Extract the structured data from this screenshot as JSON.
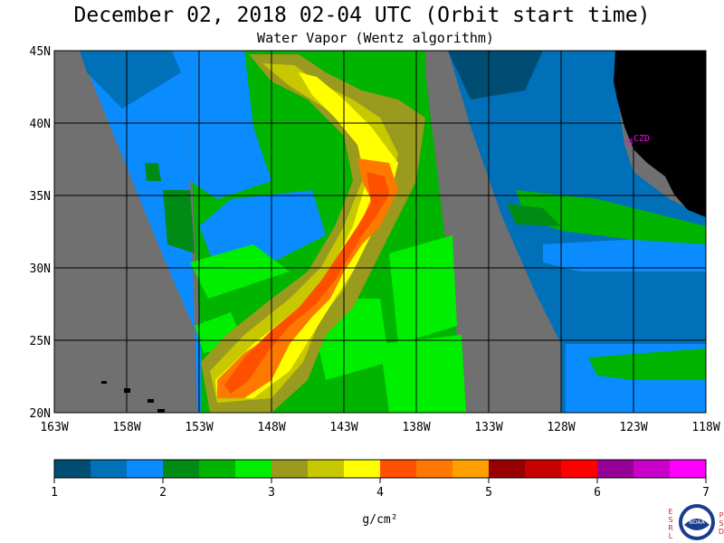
{
  "title": "December 02, 2018  02-04 UTC  (Orbit start time)",
  "subtitle": "Water Vapor (Wentz algorithm)",
  "lat_labels": [
    "45N",
    "40N",
    "35N",
    "30N",
    "25N",
    "20N"
  ],
  "lon_labels": [
    "163W",
    "158W",
    "153W",
    "148W",
    "143W",
    "138W",
    "133W",
    "128W",
    "123W",
    "118W"
  ],
  "station_label": "CZD",
  "colorbar": {
    "colors": [
      "#004d73",
      "#0070b8",
      "#0a8cff",
      "#008c14",
      "#00b400",
      "#00ee00",
      "#9a9a1e",
      "#c8c800",
      "#ffff00",
      "#ff5000",
      "#ff7800",
      "#ffa000",
      "#960000",
      "#c80000",
      "#ff0000",
      "#960096",
      "#c800c8",
      "#ff00ff"
    ],
    "tick_labels": [
      "1",
      "2",
      "3",
      "4",
      "5",
      "6",
      "7"
    ],
    "unit_label": "g/cm²"
  },
  "logo": {
    "left_letters": [
      "E",
      "S",
      "R",
      "L"
    ],
    "right_letters": [
      "P",
      "S",
      "D"
    ],
    "center_text": "NOAA"
  },
  "colors": {
    "no_data": "#707070",
    "land": "#000000",
    "grid": "#000000",
    "station": "#ff00ff"
  }
}
